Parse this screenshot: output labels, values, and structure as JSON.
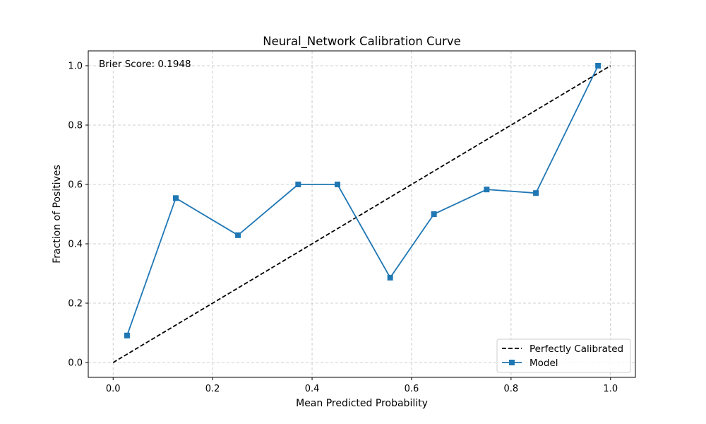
{
  "chart_data": {
    "type": "line",
    "title": "Neural_Network Calibration Curve",
    "xlabel": "Mean Predicted Probability",
    "ylabel": "Fraction of Positives",
    "xlim": [
      -0.05,
      1.05
    ],
    "ylim": [
      -0.05,
      1.05
    ],
    "xticks": [
      0.0,
      0.2,
      0.4,
      0.6,
      0.8,
      1.0
    ],
    "yticks": [
      0.0,
      0.2,
      0.4,
      0.6,
      0.8,
      1.0
    ],
    "tick_labels_x": [
      "0.0",
      "0.2",
      "0.4",
      "0.6",
      "0.8",
      "1.0"
    ],
    "tick_labels_y": [
      "0.0",
      "0.2",
      "0.4",
      "0.6",
      "0.8",
      "1.0"
    ],
    "grid": true,
    "legend_position": "bottom-right",
    "annotation": "Brier Score: 0.1948",
    "series": [
      {
        "name": "Perfectly Calibrated",
        "style": "dashed",
        "color": "#000000",
        "x": [
          0.0,
          1.0
        ],
        "y": [
          0.0,
          1.0
        ]
      },
      {
        "name": "Model",
        "style": "solid",
        "marker": "square",
        "color": "#1f77b4",
        "x": [
          0.028,
          0.126,
          0.251,
          0.372,
          0.451,
          0.557,
          0.645,
          0.751,
          0.85,
          0.975
        ],
        "y": [
          0.091,
          0.554,
          0.429,
          0.6,
          0.6,
          0.286,
          0.5,
          0.583,
          0.571,
          1.0
        ]
      }
    ]
  }
}
